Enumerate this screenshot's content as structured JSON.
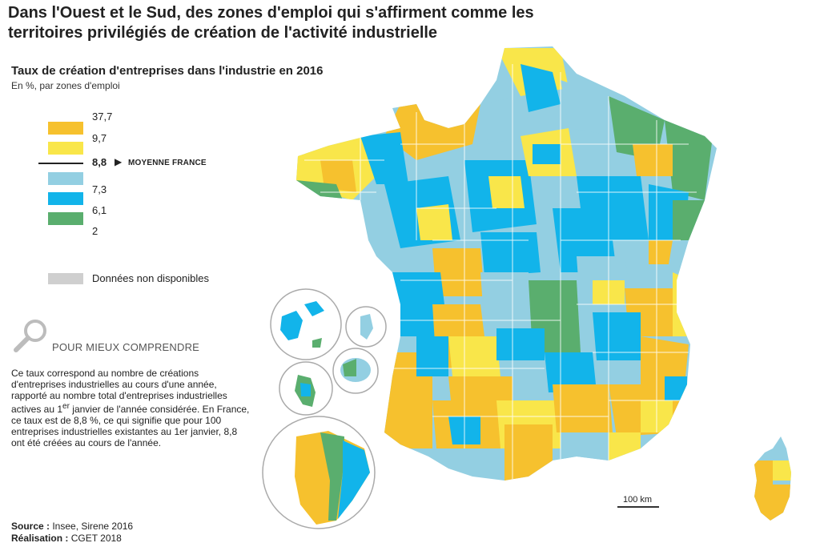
{
  "title": "Dans l'Ouest et le Sud, des zones d'emploi qui s'affirment comme les territoires privilégiés de création de l'activité industrielle",
  "legend": {
    "title": "Taux de création d'entreprises dans l'industrie en 2016",
    "subtitle": "En %, par zones d'emploi",
    "classes": [
      {
        "label": "37,7",
        "color": "#f6c12e"
      },
      {
        "label": "9,7",
        "color": "#f9e64a"
      },
      {
        "label": "",
        "color": "#93cfe2"
      },
      {
        "label": "7,3",
        "color": "#12b4ea"
      },
      {
        "label": "6,1",
        "color": "#5aae6e"
      },
      {
        "label": "2",
        "color": ""
      }
    ],
    "average_value": "8,8",
    "average_arrow": "▶",
    "average_label": "MOYENNE FRANCE",
    "na_label": "Données non disponibles",
    "na_color": "#cfcfcf"
  },
  "help": {
    "icon": "magnifier-icon",
    "heading": "POUR MIEUX COMPRENDRE",
    "line1": "Ce taux correspond au nombre de créations d'entreprises industrielles au cours d'une année, rapporté au nombre total d'entreprises industrielles actives au 1",
    "sup": "er",
    "line2": " janvier de l'année considérée. En France, ce taux est de 8,8 %, ce qui signifie que pour 100 entreprises industrielles existantes au 1er janvier, 8,8 ont été créées au cours de l'année."
  },
  "scale": "100 km",
  "source": {
    "source_label": "Source :",
    "source_value": " Insee, Sirene 2016",
    "realisation_label": "Réalisation :",
    "realisation_value": " CGET 2018"
  }
}
